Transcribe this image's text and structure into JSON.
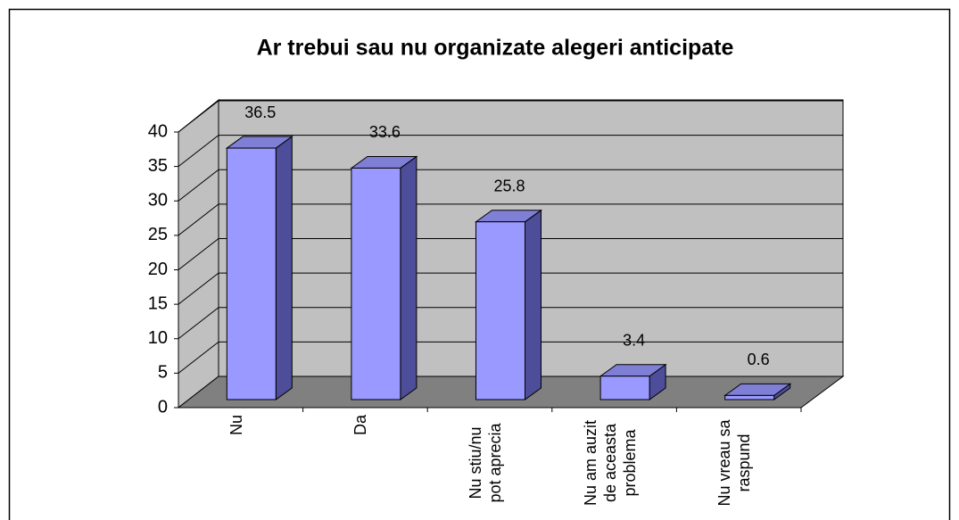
{
  "chart_data": {
    "type": "bar3d",
    "title": "Ar trebui sau nu organizate alegeri anticipate",
    "categories": [
      "Nu",
      "Da",
      "Nu stiu/nu pot aprecia",
      "Nu am auzit de aceasta problema",
      "Nu vreau sa raspund"
    ],
    "values": [
      36.5,
      33.6,
      25.8,
      3.4,
      0.6
    ],
    "color": "#9999ff",
    "ylim": [
      0,
      40
    ],
    "yticks": [
      0,
      5,
      10,
      15,
      20,
      25,
      30,
      35,
      40
    ],
    "grid": true
  }
}
